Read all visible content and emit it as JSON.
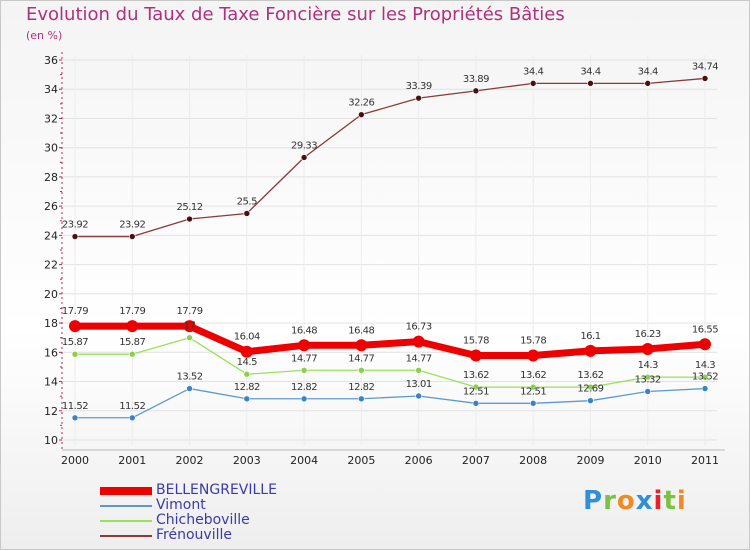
{
  "title": "Evolution du Taux de Taxe Foncière sur les Propriétés Bâties",
  "unit_label": "(en %)",
  "logo": {
    "text": "Proxiti",
    "colors": [
      "#2f8fd8",
      "#7cc242",
      "#f08a24",
      "#2f8fd8",
      "#e8202a",
      "#7cc242",
      "#f08a24"
    ]
  },
  "chart_data": {
    "type": "line",
    "x": [
      "2000",
      "2001",
      "2002",
      "2003",
      "2004",
      "2005",
      "2006",
      "2007",
      "2008",
      "2009",
      "2010",
      "2011"
    ],
    "ylim": [
      10,
      36
    ],
    "yticks": [
      "10",
      "12",
      "14",
      "16",
      "18",
      "20",
      "22",
      "24",
      "26",
      "28",
      "30",
      "32",
      "34",
      "36"
    ],
    "grid": true,
    "legend_position": "bottom-left",
    "series": [
      {
        "name": "Frénouville",
        "color": "#8b3a3a",
        "marker": "#4a1010",
        "values": [
          23.92,
          23.92,
          25.12,
          25.5,
          29.33,
          32.26,
          33.39,
          33.89,
          34.4,
          34.4,
          34.4,
          34.74
        ],
        "labels": [
          "23.92",
          "23.92",
          "25.12",
          "25.5",
          "29.33",
          "32.26",
          "33.39",
          "33.89",
          "34.4",
          "34.4",
          "34.4",
          "34.74"
        ]
      },
      {
        "name": "Chicheboville",
        "color": "#9be05a",
        "marker": "#8ad048",
        "values": [
          15.87,
          15.87,
          17,
          14.5,
          14.77,
          14.77,
          14.77,
          13.62,
          13.62,
          13.62,
          14.3,
          14.3
        ],
        "labels": [
          "15.87",
          "15.87",
          "17",
          "14.5",
          "14.77",
          "14.77",
          "14.77",
          "13.62",
          "13.62",
          "13.62",
          "14.3",
          "14.3"
        ]
      },
      {
        "name": "Vimont",
        "color": "#5a9ad0",
        "marker": "#3a82c4",
        "values": [
          11.52,
          11.52,
          13.52,
          12.82,
          12.82,
          12.82,
          13.01,
          12.51,
          12.51,
          12.69,
          13.32,
          13.52
        ],
        "labels": [
          "11.52",
          "11.52",
          "13.52",
          "12.82",
          "12.82",
          "12.82",
          "13.01",
          "12.51",
          "12.51",
          "12.69",
          "13.32",
          "13.52"
        ]
      },
      {
        "name": "BELLENGREVILLE",
        "color": "#ee0000",
        "marker": "#ee0000",
        "values": [
          17.79,
          17.79,
          17.79,
          16.04,
          16.48,
          16.48,
          16.73,
          15.78,
          15.78,
          16.1,
          16.23,
          16.55
        ],
        "labels": [
          "17.79",
          "17.79",
          "17.79",
          "16.04",
          "16.48",
          "16.48",
          "16.73",
          "15.78",
          "15.78",
          "16.1",
          "16.23",
          "16.55"
        ]
      }
    ]
  }
}
